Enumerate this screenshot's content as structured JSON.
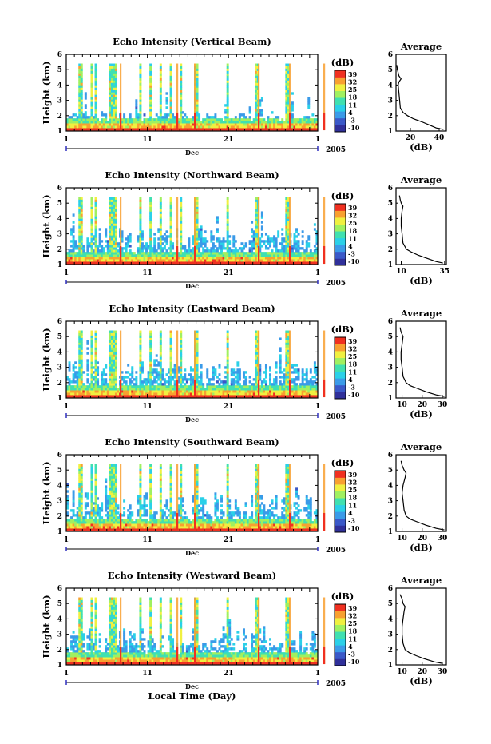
{
  "chart_data": [
    {
      "type": "heatmap",
      "title": "Echo Intensity (Vertical Beam)",
      "ylabel": "Height (km)",
      "ylim": [
        1,
        6
      ],
      "y_ticks": [
        "1",
        "2",
        "3",
        "4",
        "5",
        "6"
      ],
      "x_ticks": [
        "1",
        "11",
        "21",
        "1"
      ],
      "x_month": "Dec",
      "x_year": "2005",
      "colorbar_unit": "(dB)",
      "colorbar_ticks": [
        "39",
        "32",
        "25",
        "18",
        "11",
        "4",
        "-3",
        "-10"
      ],
      "avg_title": "Average",
      "avg_xlabel": "(dB)",
      "avg_x_ticks": [
        "20",
        "40"
      ],
      "avg_xlim": [
        10,
        45
      ],
      "avg_profile": {
        "height": [
          1.1,
          1.2,
          1.4,
          1.6,
          1.8,
          2.0,
          2.2,
          2.5,
          3.0,
          3.5,
          4.0,
          4.2,
          4.4,
          4.6,
          4.8,
          5.0,
          5.3
        ],
        "db": [
          43,
          38,
          33,
          28,
          22,
          18,
          15,
          13,
          12.5,
          12,
          11.5,
          12,
          13.5,
          12,
          11.5,
          11,
          10.5
        ]
      }
    },
    {
      "type": "heatmap",
      "title": "Echo Intensity (Northward Beam)",
      "ylabel": "Height (km)",
      "ylim": [
        1,
        6
      ],
      "y_ticks": [
        "1",
        "2",
        "3",
        "4",
        "5",
        "6"
      ],
      "x_ticks": [
        "1",
        "11",
        "21",
        "1"
      ],
      "x_month": "Dec",
      "x_year": "2005",
      "colorbar_unit": "(dB)",
      "colorbar_ticks": [
        "39",
        "32",
        "25",
        "18",
        "11",
        "4",
        "-3",
        "-10"
      ],
      "avg_title": "Average",
      "avg_xlabel": "(dB)",
      "avg_x_ticks": [
        "10",
        "35"
      ],
      "avg_xlim": [
        7,
        36
      ],
      "avg_profile": {
        "height": [
          1.1,
          1.2,
          1.4,
          1.6,
          1.8,
          2.0,
          2.4,
          3.0,
          3.5,
          4.0,
          4.5,
          4.8,
          5.0,
          5.2,
          5.5
        ],
        "db": [
          34,
          30,
          25,
          20,
          16,
          13,
          11,
          10.5,
          10,
          10,
          10.5,
          11,
          10,
          9.5,
          9
        ]
      }
    },
    {
      "type": "heatmap",
      "title": "Echo Intensity (Eastward Beam)",
      "ylabel": "Height (km)",
      "ylim": [
        1,
        6
      ],
      "y_ticks": [
        "1",
        "2",
        "3",
        "4",
        "5",
        "6"
      ],
      "x_ticks": [
        "1",
        "11",
        "21",
        "1"
      ],
      "x_month": "Dec",
      "x_year": "2005",
      "colorbar_unit": "(dB)",
      "colorbar_ticks": [
        "39",
        "32",
        "25",
        "18",
        "11",
        "4",
        "-3",
        "-10"
      ],
      "avg_title": "Average",
      "avg_xlabel": "(dB)",
      "avg_x_ticks": [
        "10",
        "20",
        "30"
      ],
      "avg_xlim": [
        7,
        32
      ],
      "avg_profile": {
        "height": [
          1.1,
          1.2,
          1.4,
          1.6,
          1.8,
          2.0,
          2.4,
          3.0,
          3.5,
          4.0,
          4.5,
          5.0,
          5.3,
          5.6
        ],
        "db": [
          31,
          27,
          22,
          18,
          14,
          12,
          10.5,
          10,
          9.5,
          9.5,
          10,
          10.5,
          9.5,
          9
        ]
      }
    },
    {
      "type": "heatmap",
      "title": "Echo Intensity (Southward Beam)",
      "ylabel": "Height (km)",
      "ylim": [
        1,
        6
      ],
      "y_ticks": [
        "1",
        "2",
        "3",
        "4",
        "5",
        "6"
      ],
      "x_ticks": [
        "1",
        "11",
        "21",
        "1"
      ],
      "x_month": "Dec",
      "x_year": "2005",
      "colorbar_unit": "(dB)",
      "colorbar_ticks": [
        "39",
        "32",
        "25",
        "18",
        "11",
        "4",
        "-3",
        "-10"
      ],
      "avg_title": "Average",
      "avg_xlabel": "(dB)",
      "avg_x_ticks": [
        "10",
        "20",
        "30"
      ],
      "avg_xlim": [
        7,
        32
      ],
      "avg_profile": {
        "height": [
          1.1,
          1.2,
          1.4,
          1.6,
          1.8,
          2.0,
          2.4,
          3.0,
          3.5,
          4.0,
          4.5,
          4.8,
          5.0,
          5.3,
          5.6
        ],
        "db": [
          31,
          27,
          22,
          18,
          14,
          12,
          11,
          10.5,
          10,
          10.5,
          11.5,
          12,
          11,
          10,
          9.5
        ]
      }
    },
    {
      "type": "heatmap",
      "title": "Echo Intensity (Westward Beam)",
      "ylabel": "Height (km)",
      "xlabel": "Local Time (Day)",
      "ylim": [
        1,
        6
      ],
      "y_ticks": [
        "1",
        "2",
        "3",
        "4",
        "5",
        "6"
      ],
      "x_ticks": [
        "1",
        "11",
        "21",
        "1"
      ],
      "x_month": "Dec",
      "x_year": "2005",
      "colorbar_unit": "(dB)",
      "colorbar_ticks": [
        "39",
        "32",
        "25",
        "18",
        "11",
        "4",
        "-3",
        "-10"
      ],
      "avg_title": "Average",
      "avg_xlabel": "(dB)",
      "avg_x_ticks": [
        "10",
        "20",
        "30"
      ],
      "avg_xlim": [
        7,
        32
      ],
      "avg_profile": {
        "height": [
          1.1,
          1.2,
          1.4,
          1.6,
          1.8,
          2.0,
          2.4,
          3.0,
          3.5,
          4.0,
          4.5,
          4.8,
          5.0,
          5.3,
          5.6
        ],
        "db": [
          30,
          26,
          21,
          17,
          13.5,
          11.5,
          10.5,
          10,
          10,
          10.5,
          11,
          11.5,
          10.5,
          10,
          9
        ]
      }
    }
  ]
}
